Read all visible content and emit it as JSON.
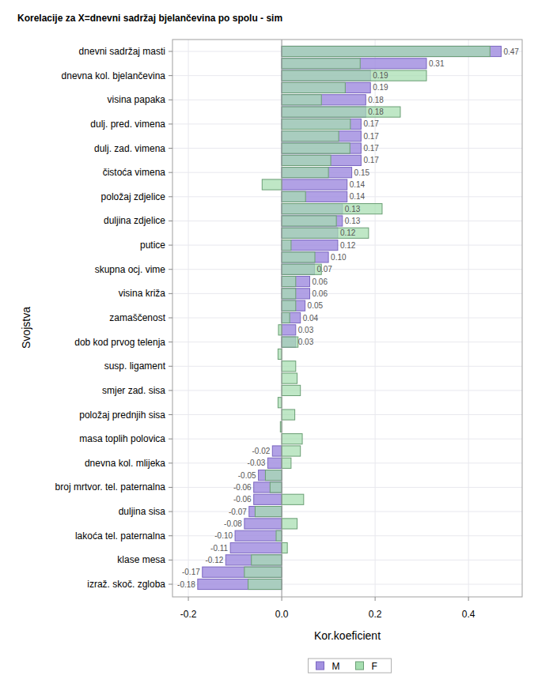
{
  "chart_data": {
    "type": "bar",
    "title": "Korelacije za X=dnevni sadržaj bjelančevina po spolu - sim",
    "xlabel": "Kor.koeficient",
    "ylabel": "Svojstva",
    "orientation": "horizontal",
    "grid": true,
    "legend": "bottom",
    "data_labels": true,
    "categories": [
      "dnevni sadržaj masti",
      null,
      "dnevna kol. bjelančevina",
      null,
      "visina papaka",
      null,
      "dulj. pred. vimena",
      null,
      "dulj. zad. vimena",
      null,
      "čistoća vimena",
      null,
      "položaj zdjelice",
      null,
      "duljina zdjelice",
      null,
      "putice",
      null,
      "skupna ocj. vime",
      null,
      "visina križa",
      null,
      "zamaščenost",
      null,
      "dob kod prvog telenja",
      null,
      "susp. ligament",
      null,
      "smjer zad. sisa",
      null,
      "položaj prednjih sisa",
      null,
      "masa toplih polovica",
      null,
      "dnevna kol. mlijeka",
      null,
      "broj mrtvor. tel. paternalna",
      null,
      "duljina sisa",
      null,
      "lakoća tel. paternalna",
      null,
      "klase mesa",
      null,
      "izraž. skoč. zgloba"
    ],
    "series": [
      {
        "name": "M",
        "color": "#a391e0",
        "values": [
          0.47,
          0.31,
          0.19,
          0.19,
          0.18,
          0.18,
          0.17,
          0.17,
          0.17,
          0.17,
          0.15,
          0.14,
          0.14,
          0.13,
          0.13,
          0.12,
          0.12,
          0.1,
          0.07,
          0.06,
          0.06,
          0.05,
          0.04,
          0.03,
          0.03,
          null,
          null,
          null,
          null,
          null,
          null,
          null,
          null,
          -0.02,
          -0.03,
          -0.05,
          -0.06,
          -0.06,
          -0.07,
          -0.08,
          -0.1,
          -0.11,
          -0.12,
          -0.17,
          -0.18
        ],
        "value_labels": [
          "0.47",
          "0.31",
          "0.19",
          "0.19",
          "0.18",
          "0.18",
          "0.17",
          "0.17",
          "0.17",
          "0.17",
          "0.15",
          "0.14",
          "0.14",
          "0.13",
          "0.13",
          "0.12",
          "0.12",
          "0.10",
          "0.07",
          "0.06",
          "0.06",
          "0.05",
          "0.04",
          "0.03",
          "0.03",
          null,
          null,
          null,
          null,
          null,
          null,
          null,
          null,
          "-0.02",
          "-0.03",
          "-0.05",
          "-0.06",
          "-0.06",
          "-0.07",
          "-0.08",
          "-0.10",
          "-0.11",
          "-0.12",
          "-0.17",
          "-0.18"
        ]
      },
      {
        "name": "F",
        "color": "#a6deb0",
        "values": [
          0.446,
          0.168,
          0.31,
          0.136,
          0.085,
          0.254,
          0.147,
          0.122,
          0.146,
          0.105,
          0.1,
          -0.042,
          0.051,
          0.215,
          0.117,
          0.186,
          0.02,
          0.071,
          0.085,
          0.03,
          0.03,
          0.03,
          0.017,
          -0.007,
          0.035,
          -0.008,
          0.03,
          0.033,
          0.04,
          -0.008,
          0.028,
          -0.003,
          0.044,
          0.04,
          0.02,
          -0.035,
          -0.025,
          0.047,
          -0.057,
          0.033,
          -0.012,
          0.012,
          -0.065,
          -0.08,
          -0.072
        ]
      }
    ],
    "xlim": [
      -0.234,
      0.515
    ],
    "xticks": [
      -0.2,
      {
        "value": 0,
        "label": "0.0"
      },
      0.2,
      0.4
    ]
  }
}
